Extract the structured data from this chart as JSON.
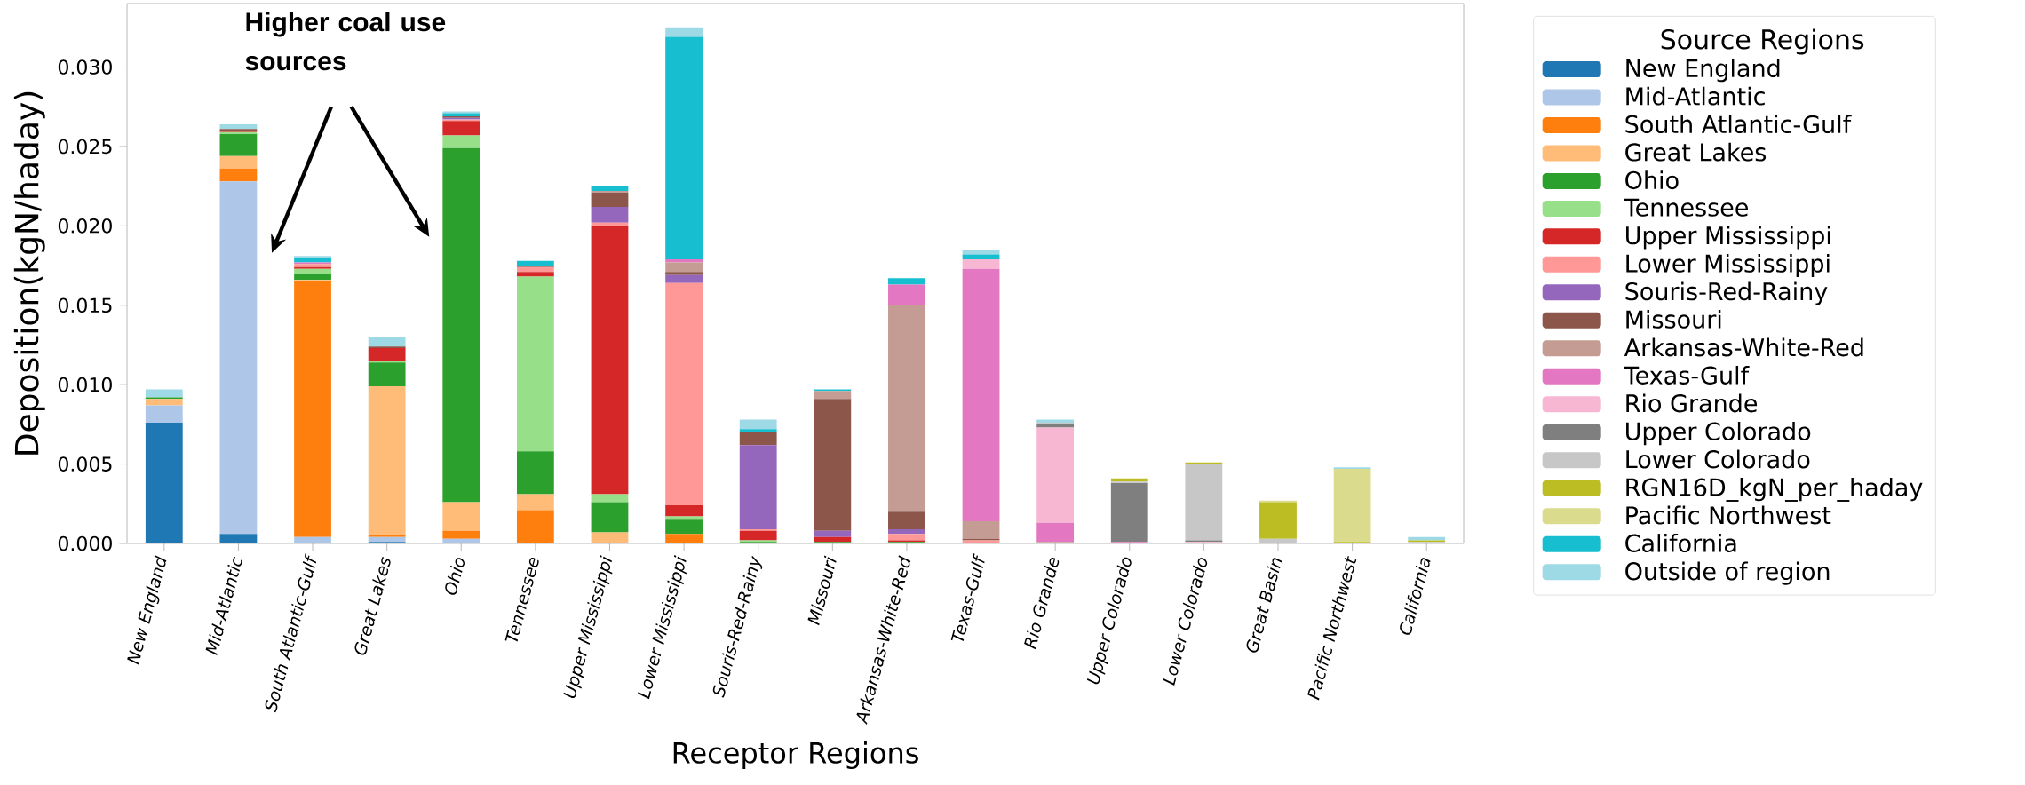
{
  "chart_data": {
    "type": "bar",
    "stacked": true,
    "xlabel": "Receptor Regions",
    "ylabel": "Deposition(kgN/haday)",
    "legend_title": "Source Regions",
    "legend": "right",
    "annotations": [
      "Higher coal use sources"
    ],
    "categories": [
      "New England",
      "Mid-Atlantic",
      "South Atlantic-Gulf",
      "Great Lakes",
      "Ohio",
      "Tennessee",
      "Upper Mississippi",
      "Lower Mississippi",
      "Souris-Red-Rainy",
      "Missouri",
      "Arkansas-White-Red",
      "Texas-Gulf",
      "Rio Grande",
      "Upper Colorado",
      "Lower Colorado",
      "Great Basin",
      "Pacific Northwest",
      "California"
    ],
    "ylim": [
      0,
      0.034
    ],
    "yticks": [
      {
        "value": 0,
        "label": "0.000"
      },
      {
        "value": 0.005,
        "label": "0.005"
      },
      {
        "value": 0.01,
        "label": "0.010"
      },
      {
        "value": 0.015,
        "label": "0.015"
      },
      {
        "value": 0.02,
        "label": "0.020"
      },
      {
        "value": 0.025,
        "label": "0.025"
      },
      {
        "value": 0.03,
        "label": "0.030"
      }
    ],
    "series": [
      {
        "name": "New England",
        "color": "#1f77b4",
        "values": [
          0.0076,
          0.0006,
          0,
          0.0001,
          0,
          0,
          0,
          0,
          0,
          0,
          0,
          0,
          0,
          0,
          0,
          0,
          0,
          0
        ]
      },
      {
        "name": "Mid-Atlantic",
        "color": "#aec7e8",
        "values": [
          0.0011,
          0.0222,
          0.0004,
          0.0003,
          0.0003,
          0,
          0,
          0,
          0,
          0,
          0,
          0,
          0,
          0,
          0,
          0,
          0,
          0
        ]
      },
      {
        "name": "South Atlantic-Gulf",
        "color": "#ff7f0e",
        "values": [
          0,
          0.0008,
          0.0161,
          0.0001,
          0.0005,
          0.0021,
          0,
          0.0006,
          0,
          0,
          0,
          0,
          0,
          0,
          0,
          0,
          0,
          0
        ]
      },
      {
        "name": "Great Lakes",
        "color": "#ffbb78",
        "values": [
          0.0004,
          0.0008,
          0.0001,
          0.0094,
          0.0018,
          0.001,
          0.0007,
          0,
          0,
          0,
          0,
          0,
          0,
          0,
          0,
          0,
          0,
          0
        ]
      },
      {
        "name": "Ohio",
        "color": "#2ca02c",
        "values": [
          0.0001,
          0.0014,
          0.0004,
          0.0015,
          0.0223,
          0.0027,
          0.0019,
          0.0009,
          0.0001,
          0.0001,
          0.0001,
          0,
          0,
          0,
          0,
          0,
          0,
          0
        ]
      },
      {
        "name": "Tennessee",
        "color": "#98df8a",
        "values": [
          0,
          0.0001,
          0.0003,
          0.0001,
          0.0008,
          0.011,
          0.0005,
          0.0002,
          0.0001,
          0,
          0,
          0,
          0,
          0,
          0,
          0,
          0,
          0
        ]
      },
      {
        "name": "Upper Mississippi",
        "color": "#d62728",
        "values": [
          0,
          0.0001,
          0.0001,
          0.0008,
          0.0009,
          0.0003,
          0.0169,
          0.0007,
          0.0006,
          0.0003,
          0.0001,
          0,
          0,
          0,
          0,
          0,
          0,
          0
        ]
      },
      {
        "name": "Lower Mississippi",
        "color": "#ff9896",
        "values": [
          0,
          0,
          0.0002,
          0,
          0.0001,
          0.0003,
          0.0002,
          0.014,
          0.0001,
          0,
          0.0004,
          0.0002,
          0,
          0,
          0,
          0,
          0,
          0
        ]
      },
      {
        "name": "Souris-Red-Rainy",
        "color": "#9467bd",
        "values": [
          0,
          0,
          0,
          0,
          0.0001,
          0,
          0.001,
          0.0005,
          0.0053,
          0.0004,
          0.0003,
          0,
          0,
          0,
          0,
          0,
          0,
          0
        ]
      },
      {
        "name": "Missouri",
        "color": "#8c564b",
        "values": [
          0,
          0.0001,
          0,
          0.0001,
          0.0001,
          0.0001,
          0.0009,
          0.0002,
          0.0008,
          0.0083,
          0.0011,
          0.0001,
          0,
          0,
          0,
          0,
          0,
          0
        ]
      },
      {
        "name": "Arkansas-White-Red",
        "color": "#c49c94",
        "values": [
          0,
          0,
          0,
          0,
          0,
          0,
          0.0001,
          0.0006,
          0,
          0.0005,
          0.013,
          0.0011,
          0.0001,
          0,
          0,
          0,
          0,
          0
        ]
      },
      {
        "name": "Texas-Gulf",
        "color": "#e377c2",
        "values": [
          0,
          0,
          0.0001,
          0,
          0,
          0,
          0,
          0.0002,
          0,
          0,
          0.0013,
          0.0159,
          0.0012,
          0.0001,
          0,
          0,
          0,
          0
        ]
      },
      {
        "name": "Rio Grande",
        "color": "#f7b6d2",
        "values": [
          0,
          0,
          0,
          0,
          0,
          0,
          0,
          0,
          0,
          0,
          0,
          0.0006,
          0.006,
          0,
          0.0001,
          0,
          0,
          0
        ]
      },
      {
        "name": "Upper Colorado",
        "color": "#7f7f7f",
        "values": [
          0,
          0,
          0,
          0,
          0,
          0,
          0,
          0,
          0,
          0,
          0,
          0,
          0.0002,
          0.0037,
          0.0001,
          0,
          0,
          0
        ]
      },
      {
        "name": "Lower Colorado",
        "color": "#c7c7c7",
        "values": [
          0,
          0,
          0,
          0,
          0,
          0,
          0,
          0,
          0,
          0,
          0,
          0,
          0.0001,
          0.0001,
          0.0048,
          0.0003,
          0,
          0.0001
        ]
      },
      {
        "name": "RGN16D_kgN_per_haday",
        "color": "#bcbd22",
        "values": [
          0,
          0,
          0,
          0,
          0,
          0,
          0,
          0,
          0,
          0,
          0,
          0,
          0,
          0.0002,
          0.0001,
          0.0023,
          0.0001,
          0.0001
        ]
      },
      {
        "name": "Pacific Northwest",
        "color": "#dbdb8d",
        "values": [
          0,
          0,
          0,
          0,
          0,
          0,
          0,
          0,
          0,
          0,
          0,
          0,
          0,
          0,
          0,
          0.0001,
          0.0046,
          0
        ]
      },
      {
        "name": "California",
        "color": "#17becf",
        "values": [
          0,
          0,
          0.0003,
          0,
          0.0002,
          0.0003,
          0.0003,
          0.014,
          0.0002,
          0.0001,
          0.0004,
          0.0003,
          0,
          0,
          0,
          0,
          0,
          0
        ]
      },
      {
        "name": "Outside of region",
        "color": "#9edae5",
        "values": [
          0.0005,
          0.0003,
          0.0001,
          0.0006,
          0.0001,
          0,
          0,
          0.0006,
          0.0006,
          0,
          0,
          0.0003,
          0.0002,
          0,
          0,
          0,
          0.0001,
          0.0002
        ]
      }
    ]
  }
}
